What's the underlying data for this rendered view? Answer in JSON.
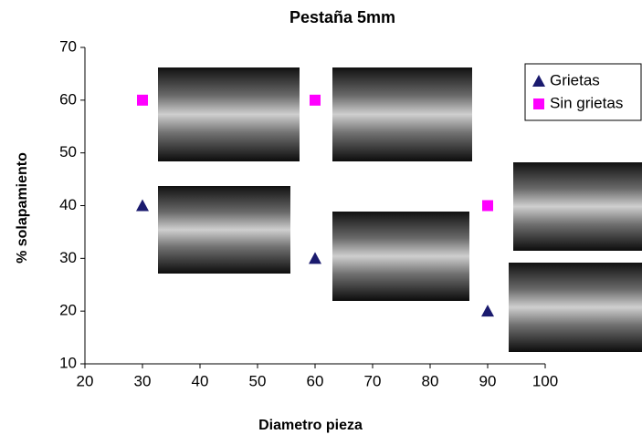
{
  "chart_data": {
    "type": "scatter",
    "title": "Pestaña 5mm",
    "x_label": "Diametro pieza",
    "y_label": "% solapamiento",
    "series": [
      {
        "name": "Grietas",
        "color": "#1a1a6e",
        "marker": "triangle",
        "x": [
          30,
          60,
          90
        ],
        "values": [
          40,
          30,
          20
        ]
      },
      {
        "name": "Sin grietas",
        "color": "#ff00ff",
        "marker": "square",
        "x": [
          30,
          60,
          90
        ],
        "values": [
          60,
          60,
          40
        ]
      }
    ],
    "xlim": [
      20,
      100
    ],
    "xticks": [
      20,
      30,
      40,
      50,
      60,
      70,
      80,
      90,
      100
    ],
    "ylim": [
      10,
      70
    ],
    "yticks": [
      10,
      20,
      30,
      40,
      50,
      60,
      70
    ],
    "grid": false,
    "legend": "upper right"
  }
}
